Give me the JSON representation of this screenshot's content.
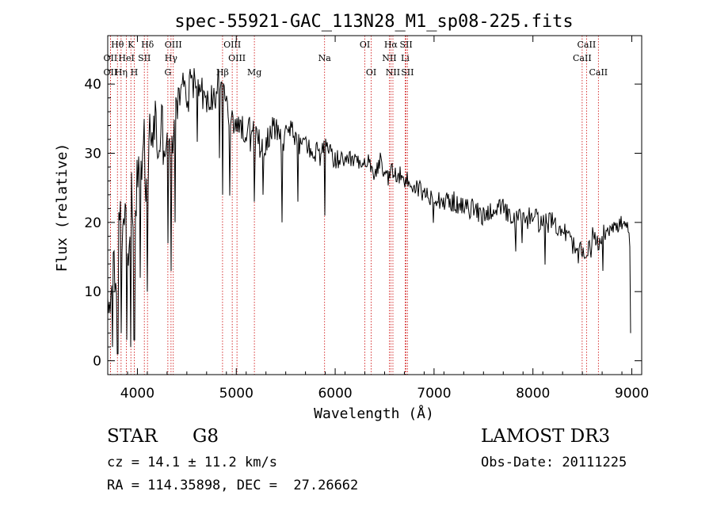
{
  "chart_data": {
    "type": "line",
    "title": "spec-55921-GAC_113N28_M1_sp08-225.fits",
    "xlabel": "Wavelength (Å)",
    "ylabel": "Flux (relative)",
    "xlim": [
      3700,
      9100
    ],
    "ylim": [
      -2,
      47
    ],
    "xticks": [
      4000,
      5000,
      6000,
      7000,
      8000,
      9000
    ],
    "yticks": [
      0,
      10,
      20,
      30,
      40
    ],
    "line_color": "#000000",
    "marker_color": "#cc0000",
    "series": [
      {
        "name": "flux",
        "x": [
          3700,
          3730,
          3760,
          3790,
          3820,
          3850,
          3880,
          3910,
          3940,
          3970,
          4000,
          4030,
          4060,
          4090,
          4120,
          4150,
          4180,
          4210,
          4240,
          4270,
          4300,
          4340,
          4380,
          4420,
          4460,
          4500,
          4550,
          4600,
          4650,
          4700,
          4750,
          4800,
          4850,
          4900,
          4950,
          5000,
          5050,
          5100,
          5150,
          5200,
          5250,
          5300,
          5350,
          5400,
          5450,
          5500,
          5550,
          5600,
          5650,
          5700,
          5750,
          5800,
          5850,
          5900,
          5950,
          6000,
          6050,
          6100,
          6150,
          6200,
          6250,
          6300,
          6350,
          6400,
          6450,
          6500,
          6550,
          6600,
          6650,
          6700,
          6750,
          6800,
          6850,
          6900,
          6950,
          7000,
          7100,
          7200,
          7300,
          7400,
          7500,
          7600,
          7700,
          7800,
          7900,
          8000,
          8100,
          8200,
          8300,
          8400,
          8450,
          8500,
          8550,
          8600,
          8650,
          8700,
          8750,
          8800,
          8850,
          8900,
          8950,
          9000
        ],
        "y": [
          5,
          10,
          18,
          8,
          22,
          15,
          25,
          12,
          28,
          16,
          30,
          24,
          34,
          22,
          32,
          33,
          35,
          30,
          34,
          32,
          33,
          29,
          36,
          38,
          40,
          38,
          42,
          40,
          39,
          37,
          38,
          39,
          41,
          37,
          34,
          35,
          33,
          34,
          33,
          32,
          31,
          32,
          33,
          34,
          32,
          33,
          34,
          32,
          31,
          32,
          30,
          30,
          31,
          31,
          30,
          29,
          29,
          28,
          29,
          29,
          28,
          28,
          29,
          27,
          29,
          26,
          27,
          27,
          27,
          26,
          26,
          25,
          25,
          24,
          24,
          24,
          23,
          23,
          22,
          22,
          21,
          22,
          22,
          20,
          21,
          21,
          20,
          20,
          19,
          17,
          15,
          16,
          16,
          18,
          17,
          18,
          19,
          20,
          19,
          20,
          19,
          17
        ]
      }
    ],
    "absorption_dips": [
      {
        "x": 3750,
        "y": 2
      },
      {
        "x": 3800,
        "y": 1
      },
      {
        "x": 3835,
        "y": 4
      },
      {
        "x": 3890,
        "y": 3
      },
      {
        "x": 3933,
        "y": 2
      },
      {
        "x": 3968,
        "y": 3
      },
      {
        "x": 4030,
        "y": 12
      },
      {
        "x": 4102,
        "y": 10
      },
      {
        "x": 4308,
        "y": 17
      },
      {
        "x": 4340,
        "y": 13
      },
      {
        "x": 4383,
        "y": 20
      },
      {
        "x": 4861,
        "y": 24
      },
      {
        "x": 5183,
        "y": 23
      },
      {
        "x": 5270,
        "y": 24
      },
      {
        "x": 5460,
        "y": 20
      },
      {
        "x": 5620,
        "y": 23
      },
      {
        "x": 5893,
        "y": 21
      },
      {
        "x": 8498,
        "y": 15
      },
      {
        "x": 8542,
        "y": 15
      },
      {
        "x": 8662,
        "y": 16
      },
      {
        "x": 8990,
        "y": 4
      }
    ],
    "line_markers": [
      {
        "label": "Hθ",
        "x": 3798,
        "row": 0
      },
      {
        "label": "K",
        "x": 3934,
        "row": 0
      },
      {
        "label": "Hδ",
        "x": 4102,
        "row": 0
      },
      {
        "label": "OIII",
        "x": 4363,
        "row": 0
      },
      {
        "label": "OIII",
        "x": 4959,
        "row": 0
      },
      {
        "label": "OI",
        "x": 6300,
        "row": 0
      },
      {
        "label": "Hα",
        "x": 6563,
        "row": 0
      },
      {
        "label": "SII",
        "x": 6717,
        "row": 0
      },
      {
        "label": "CaII",
        "x": 8542,
        "row": 0
      },
      {
        "label": "OII",
        "x": 3727,
        "row": 1
      },
      {
        "label": "HeI",
        "x": 3889,
        "row": 1
      },
      {
        "label": "SII",
        "x": 4070,
        "row": 1
      },
      {
        "label": "Hγ",
        "x": 4340,
        "row": 1
      },
      {
        "label": "OIII",
        "x": 5007,
        "row": 1
      },
      {
        "label": "Na",
        "x": 5893,
        "row": 1
      },
      {
        "label": "NII",
        "x": 6548,
        "row": 1
      },
      {
        "label": "Li",
        "x": 6708,
        "row": 1
      },
      {
        "label": "CaII",
        "x": 8498,
        "row": 1
      },
      {
        "label": "OII",
        "x": 3727,
        "row": 2
      },
      {
        "label": "Hη",
        "x": 3835,
        "row": 2
      },
      {
        "label": "H",
        "x": 3968,
        "row": 2
      },
      {
        "label": "G",
        "x": 4308,
        "row": 2
      },
      {
        "label": "Hβ",
        "x": 4861,
        "row": 2
      },
      {
        "label": "Mg",
        "x": 5183,
        "row": 2
      },
      {
        "label": "OI",
        "x": 6364,
        "row": 2
      },
      {
        "label": "NII",
        "x": 6584,
        "row": 2
      },
      {
        "label": "SII",
        "x": 6731,
        "row": 2
      },
      {
        "label": "CaII",
        "x": 8662,
        "row": 2
      }
    ]
  },
  "info": {
    "class": "STAR",
    "subclass": "G8",
    "survey": "LAMOST DR3",
    "cz": "cz = 14.1 ± 11.2 km/s",
    "obs_date": "Obs-Date: 20111225",
    "coords": "RA = 114.35898, DEC =  27.26662"
  }
}
